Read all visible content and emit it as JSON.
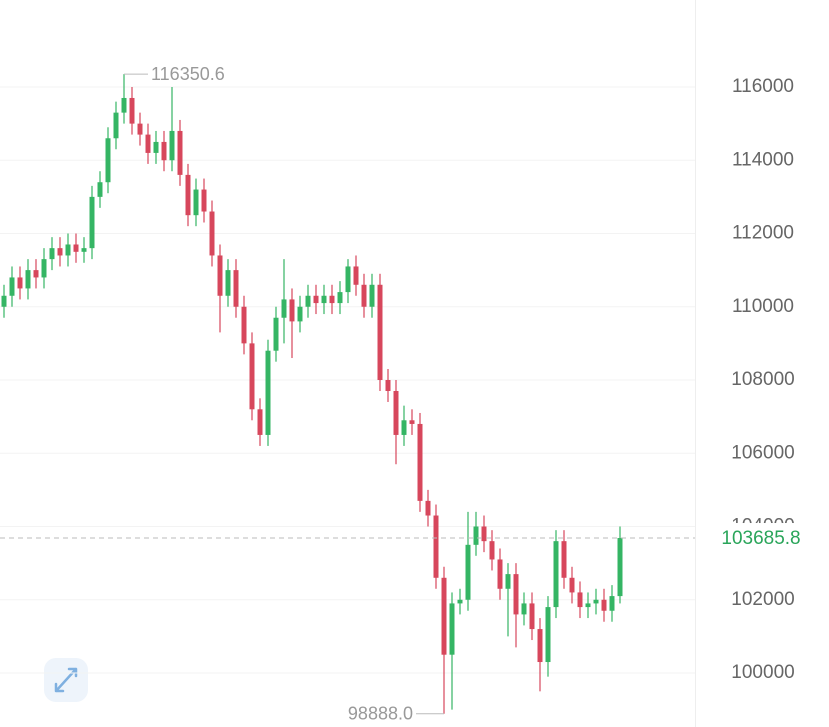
{
  "chart_data": {
    "type": "candlestick",
    "up_color": "#35b564",
    "down_color": "#d7475c",
    "ylim": [
      98526,
      118375
    ],
    "yticks": [
      100000,
      102000,
      104000,
      106000,
      108000,
      110000,
      112000,
      114000,
      116000
    ],
    "grid": true,
    "open": [
      110000,
      110300,
      110800,
      110500,
      111000,
      110800,
      111300,
      111600,
      111400,
      111700,
      111500,
      111600,
      113000,
      113400,
      114600,
      115300,
      115700,
      115000,
      114700,
      114200,
      114500,
      114000,
      114800,
      113600,
      112500,
      113200,
      112600,
      111400,
      110300,
      111000,
      110000,
      109000,
      107200,
      106500,
      108800,
      109700,
      110200,
      109600,
      110000,
      110300,
      110100,
      110300,
      110100,
      110400,
      111100,
      110600,
      110000,
      110600,
      108000,
      107700,
      106500,
      106900,
      106800,
      104700,
      104300,
      102600,
      100500,
      101900,
      102000,
      103500,
      104000,
      103600,
      103100,
      102300,
      102700,
      101600,
      101900,
      101200,
      100300,
      101800,
      103600,
      102600,
      102200,
      101800,
      101900,
      102000,
      101700,
      102100
    ],
    "high": [
      110600,
      111100,
      111100,
      111300,
      111300,
      111600,
      111900,
      111900,
      112000,
      112000,
      111900,
      113300,
      113700,
      114900,
      115600,
      116350.6,
      116000,
      115300,
      115000,
      114800,
      114800,
      116000,
      115100,
      113900,
      113500,
      113500,
      112900,
      111700,
      111300,
      111300,
      110300,
      109300,
      107500,
      109100,
      110000,
      111300,
      110500,
      110300,
      110600,
      110600,
      110600,
      110600,
      110700,
      111300,
      111400,
      110900,
      110900,
      110900,
      108300,
      108000,
      107300,
      107200,
      107100,
      105000,
      104600,
      102900,
      102200,
      102300,
      104400,
      104400,
      104300,
      103900,
      103400,
      103000,
      103000,
      102200,
      102200,
      101500,
      102100,
      103900,
      103900,
      102900,
      102500,
      102200,
      102300,
      102300,
      102400,
      104000
    ],
    "low": [
      109700,
      110000,
      110200,
      110200,
      110500,
      110500,
      111000,
      111100,
      111100,
      111200,
      111200,
      111300,
      112700,
      113100,
      114300,
      115000,
      114700,
      114400,
      113900,
      113900,
      113700,
      113700,
      113300,
      112200,
      112200,
      112300,
      111100,
      109300,
      110000,
      109700,
      108700,
      106900,
      106200,
      106200,
      108500,
      109000,
      108600,
      109300,
      109700,
      109800,
      109800,
      109800,
      109800,
      110100,
      110300,
      109700,
      109700,
      107700,
      107400,
      105700,
      106200,
      106500,
      104400,
      104000,
      102300,
      98888,
      99000,
      101600,
      101700,
      103200,
      103300,
      102800,
      102000,
      101000,
      100700,
      101300,
      100900,
      99500,
      99900,
      101500,
      102300,
      101900,
      101500,
      101500,
      101600,
      101400,
      101400,
      101900
    ],
    "close": [
      110300,
      110800,
      110500,
      111000,
      110800,
      111300,
      111600,
      111400,
      111700,
      111500,
      111600,
      113000,
      113400,
      114600,
      115300,
      115700,
      115000,
      114700,
      114200,
      114500,
      114000,
      114800,
      113600,
      112500,
      113200,
      112600,
      111400,
      110300,
      111000,
      110000,
      109000,
      107200,
      106500,
      108800,
      109700,
      110200,
      109600,
      110000,
      110300,
      110100,
      110300,
      110100,
      110400,
      111100,
      110600,
      110000,
      110600,
      108000,
      107700,
      106500,
      106900,
      106800,
      104700,
      104300,
      102600,
      100500,
      101900,
      102000,
      103500,
      104000,
      103600,
      103100,
      102300,
      102700,
      101600,
      101900,
      101200,
      100300,
      101800,
      103600,
      102600,
      102200,
      101800,
      101900,
      102000,
      101700,
      102100,
      103685.8
    ],
    "annotations": {
      "high_label": "116350.6",
      "low_label": "98888.0"
    },
    "last_price": {
      "value": 103685.8,
      "label": "103685.8"
    }
  }
}
